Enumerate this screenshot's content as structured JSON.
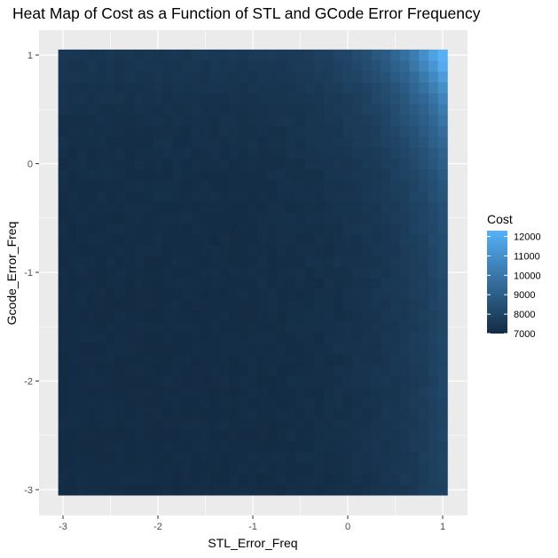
{
  "chart_data": {
    "type": "heatmap",
    "title": "Heat Map of Cost as a Function of STL and GCode Error Frequency",
    "xlabel": "STL_Error_Freq",
    "ylabel": "Gcode_Error_Freq",
    "x_range": [
      -3,
      1
    ],
    "y_range": [
      -3,
      1
    ],
    "x_ticks": [
      -3,
      -2,
      -1,
      0,
      1
    ],
    "y_ticks": [
      -3,
      -2,
      -1,
      0,
      1
    ],
    "x_tick_labels": [
      "-3",
      "-2",
      "-1",
      "0",
      "1"
    ],
    "y_tick_labels": [
      "-3",
      "-2",
      "-1",
      "0",
      "1"
    ],
    "grid_resolution": [
      41,
      41
    ],
    "grid": true,
    "fill_scale": {
      "name": "Cost",
      "min": 7000,
      "max": 12300,
      "low_color": "#132B43",
      "high_color": "#56B1F7",
      "breaks": [
        12000,
        11000,
        10000,
        9000,
        8000,
        7000
      ],
      "break_labels": [
        "12000",
        "11000",
        "10000",
        "9000",
        "8000",
        "7000"
      ]
    },
    "legend_position": "right",
    "panel_background": "#EBEBEB",
    "grid_color": "#FFFFFF"
  }
}
